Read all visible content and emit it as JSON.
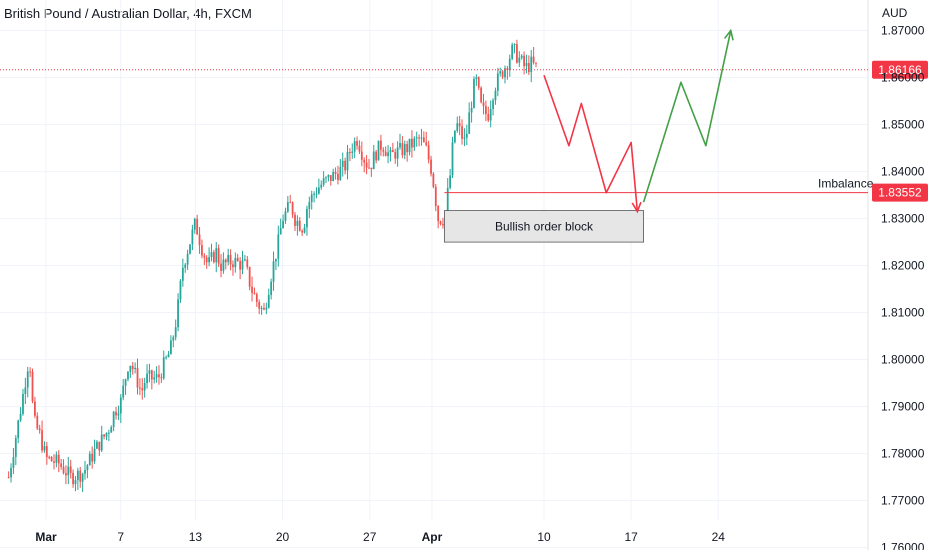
{
  "header": {
    "title": "British Pound / Australian Dollar, 4h, FXCM",
    "currency": "AUD"
  },
  "colors": {
    "up": "#26a69a",
    "down": "#ef5350",
    "current_price": "#f23645",
    "imbalance": "#f23645",
    "projection_down": "#f23645",
    "projection_up": "#43a047",
    "order_block_fill": "#e6e6e6",
    "order_block_border": "#555555",
    "grid": "#f0f3fa"
  },
  "chart_data": {
    "type": "candlestick",
    "ylim": [
      1.7595,
      1.8765
    ],
    "grid": true,
    "y_ticks": [
      "1.87000",
      "1.86000",
      "1.85000",
      "1.84000",
      "1.83000",
      "1.82000",
      "1.81000",
      "1.80000",
      "1.79000",
      "1.78000",
      "1.77000",
      "1.76000"
    ],
    "x_ticks": [
      {
        "label": "Mar",
        "date": "2024-03-01",
        "bold": true
      },
      {
        "label": "7",
        "date": "2024-03-07",
        "bold": false
      },
      {
        "label": "13",
        "date": "2024-03-13",
        "bold": false
      },
      {
        "label": "20",
        "date": "2024-03-20",
        "bold": false
      },
      {
        "label": "27",
        "date": "2024-03-27",
        "bold": false
      },
      {
        "label": "Apr",
        "date": "2024-04-01",
        "bold": true
      },
      {
        "label": "10",
        "date": "2024-04-10",
        "bold": false
      },
      {
        "label": "17",
        "date": "2024-04-17",
        "bold": false
      },
      {
        "label": "24",
        "date": "2024-04-24",
        "bold": false
      }
    ],
    "price_path": [
      [
        "2024-02-27",
        1.775
      ],
      [
        "2024-02-28",
        1.79
      ],
      [
        "2024-02-28T16",
        1.801
      ],
      [
        "2024-02-29",
        1.787
      ],
      [
        "2024-02-29T12",
        1.784
      ],
      [
        "2024-03-01",
        1.779
      ],
      [
        "2024-03-02",
        1.778
      ],
      [
        "2024-03-03",
        1.775
      ],
      [
        "2024-03-04",
        1.776
      ],
      [
        "2024-03-05",
        1.781
      ],
      [
        "2024-03-06",
        1.785
      ],
      [
        "2024-03-06T12",
        1.789
      ],
      [
        "2024-03-07",
        1.791
      ],
      [
        "2024-03-07T16",
        1.8
      ],
      [
        "2024-03-08",
        1.798
      ],
      [
        "2024-03-08T16",
        1.793
      ],
      [
        "2024-03-09",
        1.796
      ],
      [
        "2024-03-10",
        1.796
      ],
      [
        "2024-03-11",
        1.802
      ],
      [
        "2024-03-11T12",
        1.809
      ],
      [
        "2024-03-12",
        1.82
      ],
      [
        "2024-03-12T16",
        1.826
      ],
      [
        "2024-03-13",
        1.829
      ],
      [
        "2024-03-13T12",
        1.824
      ],
      [
        "2024-03-14",
        1.82
      ],
      [
        "2024-03-14T16",
        1.823
      ],
      [
        "2024-03-15",
        1.82
      ],
      [
        "2024-03-16",
        1.821
      ],
      [
        "2024-03-17",
        1.82
      ],
      [
        "2024-03-17T12",
        1.815
      ],
      [
        "2024-03-18",
        1.812
      ],
      [
        "2024-03-18T12",
        1.81
      ],
      [
        "2024-03-19",
        1.817
      ],
      [
        "2024-03-19T16",
        1.825
      ],
      [
        "2024-03-20",
        1.83
      ],
      [
        "2024-03-20T16",
        1.833
      ],
      [
        "2024-03-21",
        1.83
      ],
      [
        "2024-03-21T16",
        1.828
      ],
      [
        "2024-03-22",
        1.833
      ],
      [
        "2024-03-22T16",
        1.836
      ],
      [
        "2024-03-23",
        1.837
      ],
      [
        "2024-03-24",
        1.839
      ],
      [
        "2024-03-25",
        1.841
      ],
      [
        "2024-03-25T12",
        1.845
      ],
      [
        "2024-03-26",
        1.847
      ],
      [
        "2024-03-26T16",
        1.842
      ],
      [
        "2024-03-27",
        1.841
      ],
      [
        "2024-03-27T12",
        1.844
      ],
      [
        "2024-03-28",
        1.846
      ],
      [
        "2024-03-28T16",
        1.843
      ],
      [
        "2024-03-29",
        1.844
      ],
      [
        "2024-03-30",
        1.845
      ],
      [
        "2024-03-31",
        1.847
      ],
      [
        "2024-03-31T12",
        1.845
      ],
      [
        "2024-04-01",
        1.84
      ],
      [
        "2024-04-01T12",
        1.83
      ],
      [
        "2024-04-02",
        1.83
      ],
      [
        "2024-04-02T12",
        1.84
      ],
      [
        "2024-04-02T18",
        1.848
      ],
      [
        "2024-04-03",
        1.85
      ],
      [
        "2024-04-03T16",
        1.846
      ],
      [
        "2024-04-04",
        1.852
      ],
      [
        "2024-04-04T12",
        1.86
      ],
      [
        "2024-04-05",
        1.853
      ],
      [
        "2024-04-05T12",
        1.852
      ],
      [
        "2024-04-06",
        1.858
      ],
      [
        "2024-04-07",
        1.863
      ],
      [
        "2024-04-07T12",
        1.866
      ],
      [
        "2024-04-08",
        1.864
      ],
      [
        "2024-04-08T12",
        1.862
      ],
      [
        "2024-04-09",
        1.863
      ],
      [
        "2024-04-09T12",
        1.8617
      ]
    ],
    "current_price": "1.86166",
    "imbalance": {
      "label": "Imbalance",
      "price": "1.83552",
      "start": "2024-04-02"
    },
    "order_block": {
      "label": "Bullish order block",
      "start": "2024-04-02",
      "end": "2024-04-18",
      "low": 1.825,
      "high": 1.8317
    },
    "projection_down": [
      [
        "2024-04-10",
        1.8605
      ],
      [
        "2024-04-12",
        1.8455
      ],
      [
        "2024-04-13",
        1.8545
      ],
      [
        "2024-04-15",
        1.8355
      ],
      [
        "2024-04-17",
        1.8462
      ],
      [
        "2024-04-17T12",
        1.8315
      ]
    ],
    "projection_up": [
      [
        "2024-04-18",
        1.8335
      ],
      [
        "2024-04-21",
        1.859
      ],
      [
        "2024-04-23",
        1.8455
      ],
      [
        "2024-04-25",
        1.87
      ]
    ]
  }
}
